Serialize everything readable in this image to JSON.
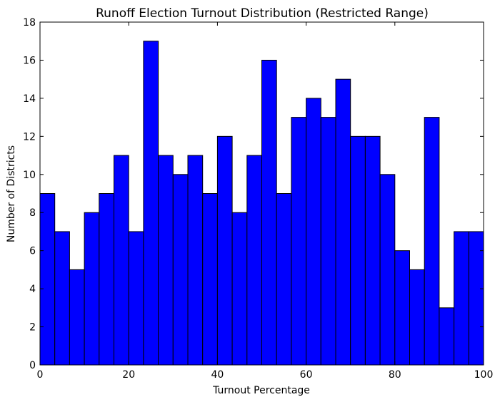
{
  "chart_data": {
    "type": "bar",
    "title": "Runoff Election Turnout Distribution (Restricted Range)",
    "xlabel": "Turnout Percentage",
    "ylabel": "Number of Districts",
    "xlim": [
      0,
      100
    ],
    "ylim": [
      0,
      18
    ],
    "x_ticks": [
      0,
      20,
      40,
      60,
      80,
      100
    ],
    "y_ticks": [
      0,
      2,
      4,
      6,
      8,
      10,
      12,
      14,
      16,
      18
    ],
    "bin_edges": [
      0,
      3.333,
      6.667,
      10,
      13.333,
      16.667,
      20,
      23.333,
      26.667,
      30,
      33.333,
      36.667,
      40,
      43.333,
      46.667,
      50,
      53.333,
      56.667,
      60,
      63.333,
      66.667,
      70,
      73.333,
      76.667,
      80,
      83.333,
      86.667,
      90,
      93.333,
      96.667,
      100
    ],
    "values": [
      9,
      7,
      5,
      8,
      9,
      11,
      7,
      17,
      11,
      10,
      11,
      9,
      12,
      8,
      11,
      16,
      9,
      13,
      14,
      13,
      15,
      12,
      12,
      10,
      6,
      5,
      13,
      3,
      7,
      7
    ],
    "bar_color": "#0000ff",
    "edge_color": "#000000",
    "grid": false
  }
}
